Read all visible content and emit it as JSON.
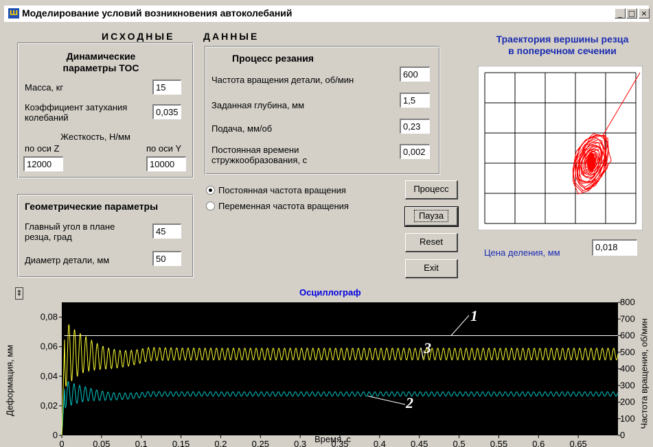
{
  "window": {
    "title": "Моделирование условий возникновения автоколебаний",
    "icon_text": "Ш",
    "minimize_glyph": "_",
    "maximize_glyph": "□",
    "close_glyph": "×"
  },
  "input_section": {
    "heading_left": "ИСХОДНЫЕ",
    "heading_right": "ДАННЫЕ"
  },
  "dynamics": {
    "title": "Динамические параметры ТОС",
    "mass_label": "Масса, кг",
    "mass_value": "15",
    "damping_label": "Коэффициент затухания колебаний",
    "damping_value": "0,035",
    "stiffness_label": "Жесткость, Н/мм",
    "axis_z_label": "по оси Z",
    "axis_y_label": "по оси Y",
    "stiffness_z_value": "12000",
    "stiffness_y_value": "10000"
  },
  "geometry": {
    "title": "Геометрические параметры",
    "angle_label": "Главный угол в плане резца, град",
    "angle_value": "45",
    "diameter_label": "Диаметр детали, мм",
    "diameter_value": "50"
  },
  "cutting": {
    "title": "Процесс резания",
    "speed_label": "Частота вращения детали, об/мин",
    "speed_value": "600",
    "depth_label": "Заданная глубина, мм",
    "depth_value": "1,5",
    "feed_label": "Подача, мм/об",
    "feed_value": "0,23",
    "time_const_label": "Постоянная времени стружкообразования, с",
    "time_const_value": "0,002"
  },
  "mode": {
    "constant_label": "Постоянная частота вращения",
    "variable_label": "Переменная частота вращения",
    "selected": "constant"
  },
  "buttons": {
    "process": "Процесс",
    "pause": "Пауза",
    "reset": "Reset",
    "exit": "Exit"
  },
  "trajectory": {
    "title_line1": "Траектория вершины резца",
    "title_line2": "в поперечном сечении",
    "scale_label": "Цена деления, мм",
    "scale_value": "0,018",
    "grid_divisions": 5,
    "line_color": "#ff0000"
  },
  "scroll_glyph": "⇕",
  "chart_data": {
    "type": "line",
    "title": "Осциллограф",
    "xlabel": "Время, с",
    "ylabel": "Деформация, мм",
    "y2label": "Частота вращения, об/мин",
    "xlim": [
      0,
      0.7
    ],
    "ylim": [
      0,
      0.09
    ],
    "y2lim": [
      0,
      800
    ],
    "x_ticks": [
      "0",
      "0,05",
      "0,1",
      "0,15",
      "0,2",
      "0,25",
      "0,3",
      "0,35",
      "0,4",
      "0,45",
      "0,5",
      "0,55",
      "0,6",
      "0,65"
    ],
    "x_tick_values": [
      0,
      0.05,
      0.1,
      0.15,
      0.2,
      0.25,
      0.3,
      0.35,
      0.4,
      0.45,
      0.5,
      0.55,
      0.6,
      0.65
    ],
    "y_ticks": [
      "0",
      "0,02",
      "0,04",
      "0,06",
      "0,08"
    ],
    "y_tick_values": [
      0,
      0.02,
      0.04,
      0.06,
      0.08
    ],
    "y2_ticks": [
      "0",
      "100",
      "200",
      "300",
      "400",
      "500",
      "600",
      "700",
      "800"
    ],
    "y2_tick_values": [
      0,
      100,
      200,
      300,
      400,
      500,
      600,
      700,
      800
    ],
    "background": "#000000",
    "grid_color": "#e0e0e0",
    "series": [
      {
        "color": "#ffffff",
        "axis": "y2",
        "constant": 600,
        "annotation": "1"
      },
      {
        "color": "#00c8c8",
        "axis": "y",
        "steady": 0.028,
        "peak": 0.036,
        "amp": 0.0015,
        "annotation": "2"
      },
      {
        "color": "#ffff33",
        "axis": "y",
        "steady": 0.055,
        "peak": 0.074,
        "amp": 0.004,
        "annotation": "3"
      }
    ]
  }
}
